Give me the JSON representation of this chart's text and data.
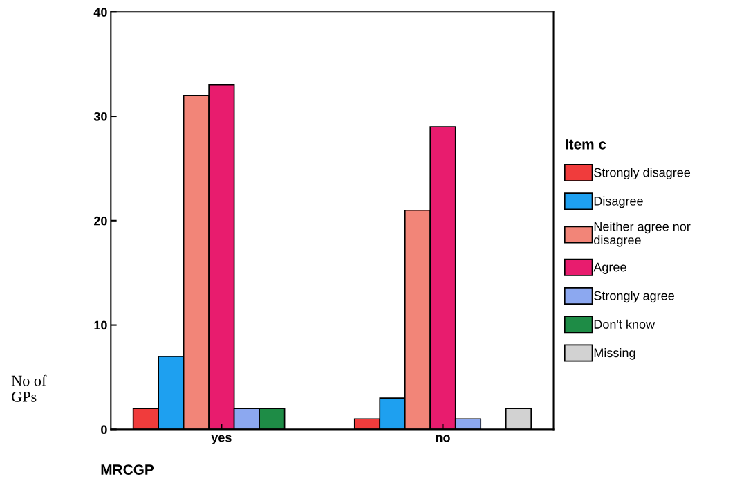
{
  "chart_data": {
    "type": "bar",
    "xlabel": "MRCGP",
    "ylabel": "No of\nGPs",
    "legend_title": "Item c",
    "categories": [
      "yes",
      "no"
    ],
    "series": [
      {
        "name": "Strongly disagree",
        "color": "#f03c3c",
        "values": [
          2,
          1
        ]
      },
      {
        "name": "Disagree",
        "color": "#1ea0f0",
        "values": [
          7,
          3
        ]
      },
      {
        "name": "Neither agree nor\ndisagree",
        "color": "#f28578",
        "values": [
          32,
          21
        ]
      },
      {
        "name": "Agree",
        "color": "#e81c6e",
        "values": [
          33,
          29
        ]
      },
      {
        "name": "Strongly agree",
        "color": "#8ca8f0",
        "values": [
          2,
          1
        ]
      },
      {
        "name": "Don't know",
        "color": "#1e8c46",
        "values": [
          2,
          null
        ]
      },
      {
        "name": "Missing",
        "color": "#d2d2d2",
        "values": [
          null,
          2
        ]
      }
    ],
    "ylim": [
      0,
      40
    ],
    "yticks": [
      0,
      10,
      20,
      30,
      40
    ],
    "legend": "right",
    "grid": false
  }
}
